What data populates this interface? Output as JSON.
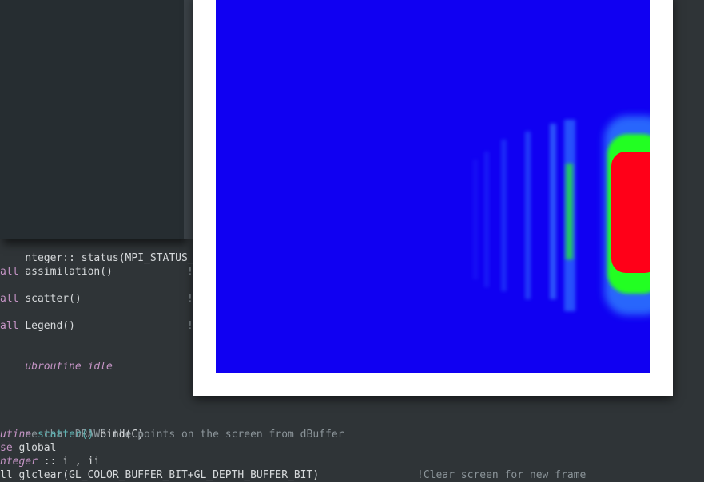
{
  "code": {
    "partial_line": "nteger:: status(MPI_STATUS_SIZE)",
    "lines": [
      {
        "kw": "all",
        "name": "assimilation()",
        "tail": "!"
      },
      {
        "kw": "all",
        "name": "scatter()",
        "tail": "!"
      },
      {
        "kw": "all",
        "name": "Legend()",
        "tail": "!"
      }
    ],
    "end_sub": "ubroutine idle",
    "comment": "ne that DRAWS the points on the screen from dBuffer",
    "sub_kw": "utine",
    "sub_name": "scatter()",
    "sub_rest": " bind(C)",
    "use_kw": "se",
    "use_rest": " global",
    "int_kw": "nteger",
    "int_rest": " :: i , ii",
    "last_line": "ll glclear(GL_COLOR_BUFFER_BIT+GL_DEPTH_BUFFER_BIT)",
    "last_comment": "!Clear screen for new frame"
  },
  "plot": {
    "background_color": "#1000f2",
    "hot_color": "#ff0018",
    "warm_color": "#22ff22",
    "frame_color": "#ffffff"
  }
}
